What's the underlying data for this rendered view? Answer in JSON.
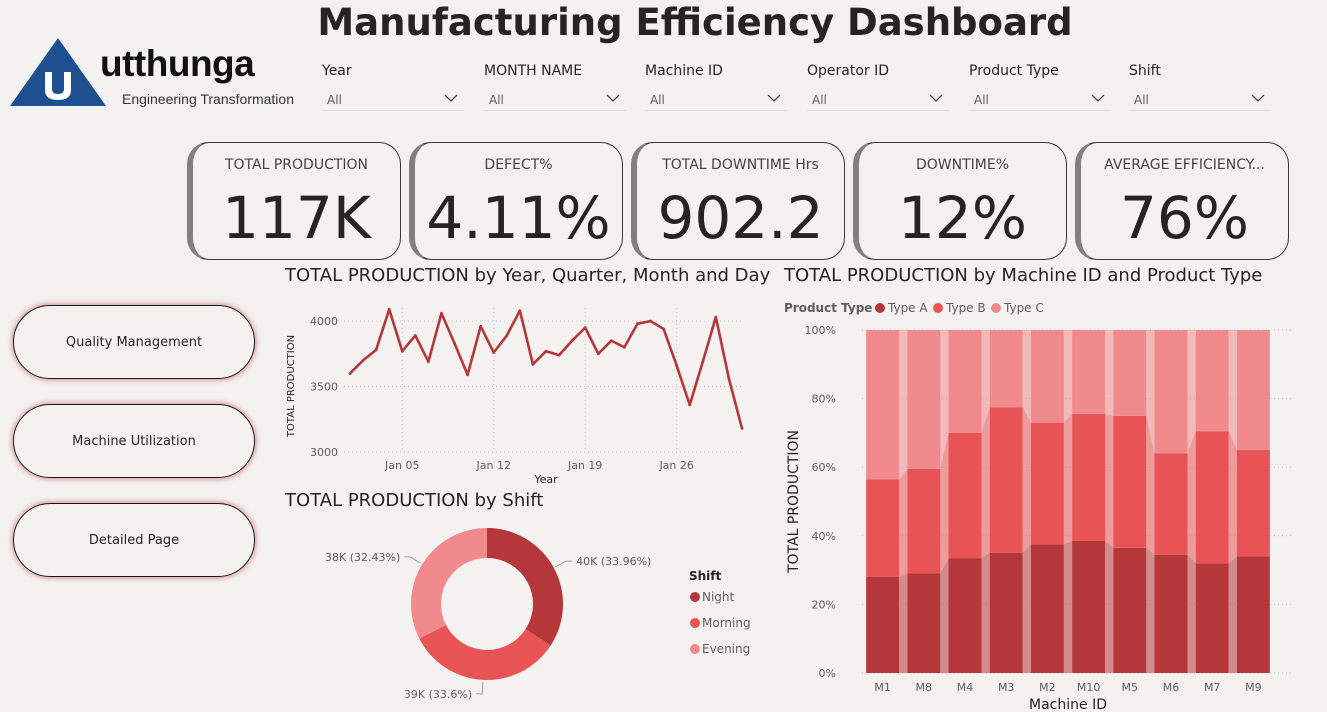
{
  "header": {
    "title": "Manufacturing Efficiency Dashboard"
  },
  "logo": {
    "name": "utthunga",
    "tagline": "Engineering Transformation",
    "colors": {
      "blue": "#1d4f91",
      "white": "#ffffff"
    }
  },
  "slicers": [
    {
      "label": "Year",
      "value": "All"
    },
    {
      "label": "MONTH NAME",
      "value": "All"
    },
    {
      "label": "Machine ID",
      "value": "All"
    },
    {
      "label": "Operator ID",
      "value": "All"
    },
    {
      "label": "Product Type",
      "value": "All"
    },
    {
      "label": "Shift",
      "value": "All"
    }
  ],
  "kpis": [
    {
      "label": "TOTAL PRODUCTION",
      "value": "117K"
    },
    {
      "label": "DEFECT%",
      "value": "4.11%"
    },
    {
      "label": "TOTAL DOWNTIME Hrs",
      "value": "902.2"
    },
    {
      "label": "DOWNTIME%",
      "value": "12%"
    },
    {
      "label": "AVERAGE EFFICIENCY...",
      "value": "76%"
    }
  ],
  "nav": [
    {
      "label": "Quality Management"
    },
    {
      "label": "Machine Utilization"
    },
    {
      "label": "Detailed Page"
    }
  ],
  "colors": {
    "dark_red": "#b5373a",
    "red": "#e85455",
    "pink": "#f08a8d",
    "line": "#b5373a"
  },
  "chart_data": [
    {
      "type": "line",
      "title": "TOTAL PRODUCTION by Year, Quarter, Month and Day",
      "xlabel": "Year",
      "ylabel": "TOTAL PRODUCTION",
      "ylim": [
        3000,
        4100
      ],
      "yticks": [
        3000,
        3500,
        4000
      ],
      "xticks": [
        "Jan 05",
        "Jan 12",
        "Jan 19",
        "Jan 26"
      ],
      "grid": true,
      "x": [
        "Jan 01",
        "Jan 02",
        "Jan 03",
        "Jan 04",
        "Jan 05",
        "Jan 06",
        "Jan 07",
        "Jan 08",
        "Jan 09",
        "Jan 10",
        "Jan 11",
        "Jan 12",
        "Jan 13",
        "Jan 14",
        "Jan 15",
        "Jan 16",
        "Jan 17",
        "Jan 18",
        "Jan 19",
        "Jan 20",
        "Jan 21",
        "Jan 22",
        "Jan 23",
        "Jan 24",
        "Jan 25",
        "Jan 26",
        "Jan 27",
        "Jan 28",
        "Jan 29",
        "Jan 30",
        "Jan 31"
      ],
      "values": [
        3600,
        3700,
        3780,
        4090,
        3770,
        3890,
        3690,
        4060,
        3830,
        3590,
        3960,
        3760,
        3890,
        4080,
        3670,
        3770,
        3740,
        3850,
        3950,
        3750,
        3850,
        3800,
        3980,
        4000,
        3940,
        3660,
        3360,
        3690,
        4030,
        3560,
        3180
      ]
    },
    {
      "type": "pie",
      "title": "TOTAL PRODUCTION by Shift",
      "legend_title": "Shift",
      "legend_position": "right",
      "slices": [
        {
          "name": "Night",
          "value": 40,
          "label": "40K (33.96%)",
          "color": "#b5373a"
        },
        {
          "name": "Morning",
          "value": 39,
          "label": "39K (33.6%)",
          "color": "#e85455"
        },
        {
          "name": "Evening",
          "value": 38,
          "label": "38K (32.43%)",
          "color": "#f08a8d"
        }
      ]
    },
    {
      "type": "bar",
      "stacked": "100%",
      "title": "TOTAL PRODUCTION by Machine ID and Product Type",
      "legend_title": "Product Type",
      "legend_position": "top-left",
      "xlabel": "Machine ID",
      "ylabel": "TOTAL PRODUCTION",
      "yticks": [
        "0%",
        "20%",
        "40%",
        "60%",
        "80%",
        "100%"
      ],
      "categories": [
        "M1",
        "M8",
        "M4",
        "M3",
        "M2",
        "M10",
        "M5",
        "M6",
        "M7",
        "M9"
      ],
      "series": [
        {
          "name": "Type A",
          "color": "#b5373a",
          "values": [
            28,
            29,
            33.5,
            35,
            37.5,
            38.5,
            36.5,
            34.5,
            32,
            34
          ]
        },
        {
          "name": "Type B",
          "color": "#e85455",
          "values": [
            28.5,
            30.5,
            36.5,
            42.5,
            35.5,
            37,
            38.5,
            29.5,
            38.5,
            31
          ]
        },
        {
          "name": "Type C",
          "color": "#f08a8d",
          "values": [
            43.5,
            40.5,
            30,
            22.5,
            27,
            24.5,
            25,
            36,
            29.5,
            35
          ]
        }
      ]
    }
  ]
}
